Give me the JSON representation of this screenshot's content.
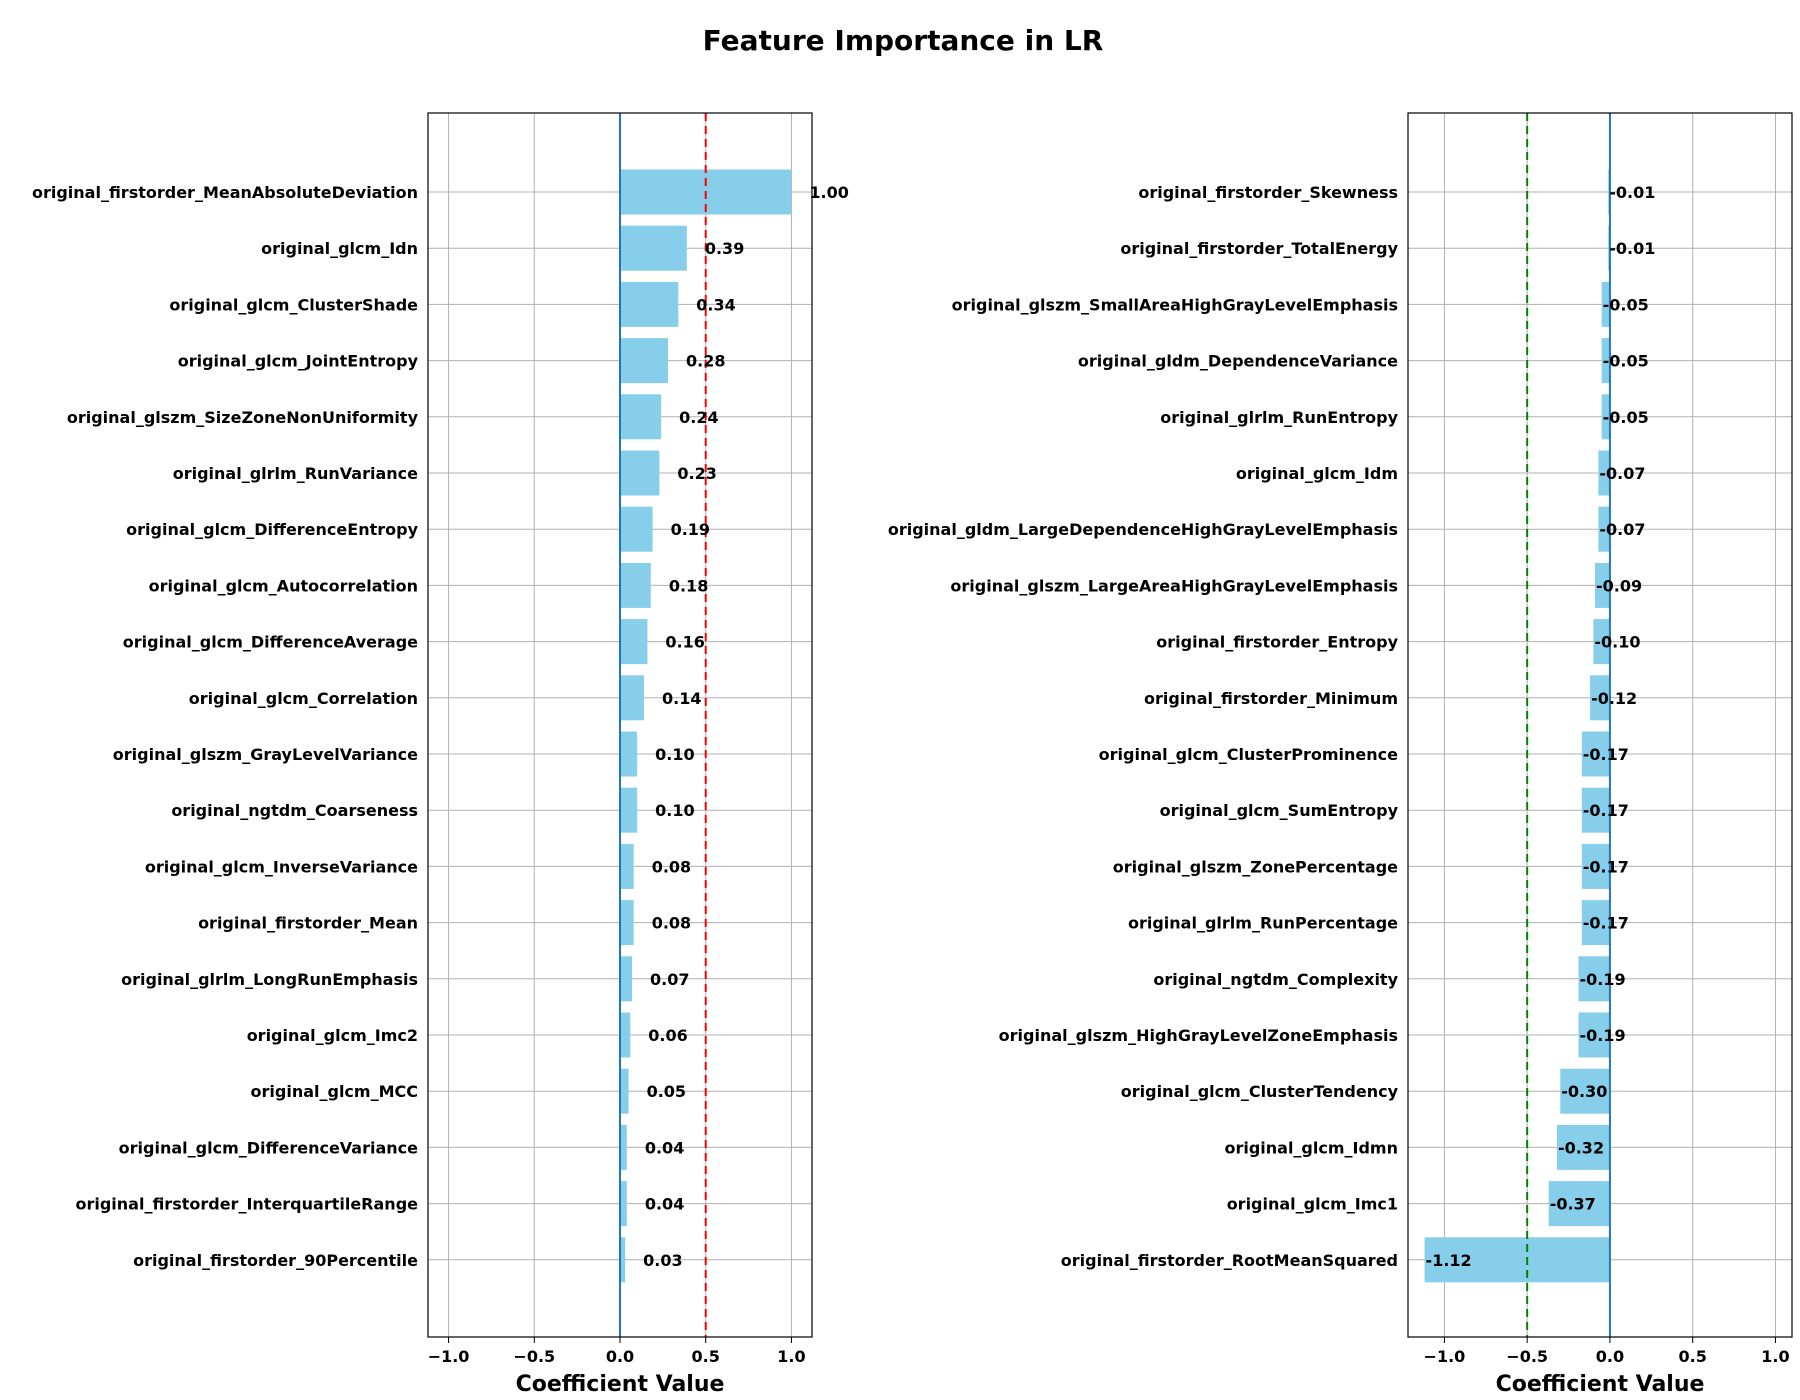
{
  "figure": {
    "title": "Feature Importance in LR"
  },
  "chart_data": [
    {
      "type": "bar",
      "orientation": "horizontal",
      "title": "",
      "xlabel": "Coefficient Value",
      "ylabel": "",
      "xlim": [
        -1.12,
        1.12
      ],
      "xticks": [
        -1.0,
        -0.5,
        0.0,
        0.5,
        1.0
      ],
      "xtick_labels": [
        "−1.0",
        "−0.5",
        "0.0",
        "0.5",
        "1.0"
      ],
      "grid": true,
      "bar_color": "#87ceeb",
      "reference_line": {
        "x": 0.5,
        "style": "dashed",
        "color": "#ff0000"
      },
      "zero_line_color": "#1f77b4",
      "categories": [
        "original_firstorder_MeanAbsoluteDeviation",
        "original_glcm_Idn",
        "original_glcm_ClusterShade",
        "original_glcm_JointEntropy",
        "original_glszm_SizeZoneNonUniformity",
        "original_glrlm_RunVariance",
        "original_glcm_DifferenceEntropy",
        "original_glcm_Autocorrelation",
        "original_glcm_DifferenceAverage",
        "original_glcm_Correlation",
        "original_glszm_GrayLevelVariance",
        "original_ngtdm_Coarseness",
        "original_glcm_InverseVariance",
        "original_firstorder_Mean",
        "original_glrlm_LongRunEmphasis",
        "original_glcm_Imc2",
        "original_glcm_MCC",
        "original_glcm_DifferenceVariance",
        "original_firstorder_InterquartileRange",
        "original_firstorder_90Percentile"
      ],
      "values": [
        1.0,
        0.39,
        0.34,
        0.28,
        0.24,
        0.23,
        0.19,
        0.18,
        0.16,
        0.14,
        0.1,
        0.1,
        0.08,
        0.08,
        0.07,
        0.06,
        0.05,
        0.04,
        0.04,
        0.03
      ],
      "value_labels": [
        "1.00",
        "0.39",
        "0.34",
        "0.28",
        "0.24",
        "0.23",
        "0.19",
        "0.18",
        "0.16",
        "0.14",
        "0.10",
        "0.10",
        "0.08",
        "0.08",
        "0.07",
        "0.06",
        "0.05",
        "0.04",
        "0.04",
        "0.03"
      ]
    },
    {
      "type": "bar",
      "orientation": "horizontal",
      "title": "",
      "xlabel": "Coefficient Value",
      "ylabel": "",
      "xlim": [
        -1.22,
        1.1
      ],
      "xticks": [
        -1.0,
        -0.5,
        0.0,
        0.5,
        1.0
      ],
      "xtick_labels": [
        "−1.0",
        "−0.5",
        "0.0",
        "0.5",
        "1.0"
      ],
      "grid": true,
      "bar_color": "#87ceeb",
      "reference_line": {
        "x": -0.5,
        "style": "dashed",
        "color": "#008000"
      },
      "zero_line_color": "#1f77b4",
      "categories": [
        "original_firstorder_Skewness",
        "original_firstorder_TotalEnergy",
        "original_glszm_SmallAreaHighGrayLevelEmphasis",
        "original_gldm_DependenceVariance",
        "original_glrlm_RunEntropy",
        "original_glcm_Idm",
        "original_gldm_LargeDependenceHighGrayLevelEmphasis",
        "original_glszm_LargeAreaHighGrayLevelEmphasis",
        "original_firstorder_Entropy",
        "original_firstorder_Minimum",
        "original_glcm_ClusterProminence",
        "original_glcm_SumEntropy",
        "original_glszm_ZonePercentage",
        "original_glrlm_RunPercentage",
        "original_ngtdm_Complexity",
        "original_glszm_HighGrayLevelZoneEmphasis",
        "original_glcm_ClusterTendency",
        "original_glcm_Idmn",
        "original_glcm_Imc1",
        "original_firstorder_RootMeanSquared"
      ],
      "values": [
        -0.01,
        -0.01,
        -0.05,
        -0.05,
        -0.05,
        -0.07,
        -0.07,
        -0.09,
        -0.1,
        -0.12,
        -0.17,
        -0.17,
        -0.17,
        -0.17,
        -0.19,
        -0.19,
        -0.3,
        -0.32,
        -0.37,
        -1.12
      ],
      "value_labels": [
        "-0.01",
        "-0.01",
        "-0.05",
        "-0.05",
        "-0.05",
        "-0.07",
        "-0.07",
        "-0.09",
        "-0.10",
        "-0.12",
        "-0.17",
        "-0.17",
        "-0.17",
        "-0.17",
        "-0.19",
        "-0.19",
        "-0.30",
        "-0.32",
        "-0.37",
        "-1.12"
      ]
    }
  ]
}
